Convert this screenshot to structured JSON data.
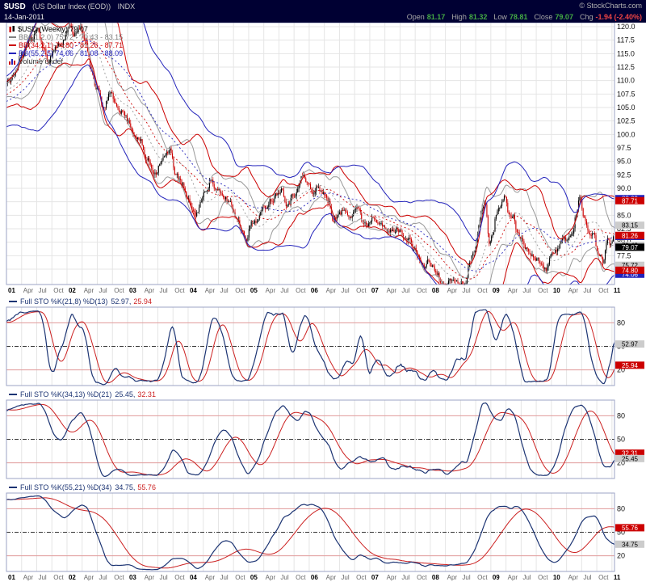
{
  "header": {
    "symbol": "$USD",
    "name": "(US Dollar Index (EOD))",
    "exchange": "INDX",
    "copyright": "© StockCharts.com",
    "date": "14-Jan-2011",
    "quote": {
      "open_label": "Open",
      "open": "81.17",
      "high_label": "High",
      "high": "81.32",
      "low_label": "Low",
      "low": "78.81",
      "close_label": "Close",
      "close": "79.07",
      "chg_label": "Chg",
      "chg": "-1.94 (-2.40%)"
    }
  },
  "main_legend": {
    "title": "$USD (Weekly) 79.07",
    "bb21": "BB(21,2.0) 75.72 - 79.43 - 83.15",
    "bb34": "BB(34,2.1) 74.80 - 81.26 - 87.71",
    "bb55": "BB(55,2.5) 74.06 - 81.08 - 88.09",
    "volume": "Volume undef"
  },
  "chart_data": {
    "type": "candlestick+indicators",
    "title": "$USD (US Dollar Index (EOD)) INDX Weekly",
    "colors": {
      "grid": "#e5e5e5",
      "border": "#9ba3c5",
      "candle_up": "#000000",
      "candle_down": "#cc0000",
      "k_line": "#1c3473",
      "d_line": "#cc2020",
      "k_box": "#cccccc",
      "d_box": "#cc0000",
      "ob_os": "#e09a9a"
    },
    "x_axis": {
      "tick_labels": [
        "01",
        "Apr",
        "Jul",
        "Oct",
        "02",
        "Apr",
        "Jul",
        "Oct",
        "03",
        "Apr",
        "Jul",
        "Oct",
        "04",
        "Apr",
        "Jul",
        "Oct",
        "05",
        "Apr",
        "Jul",
        "Oct",
        "06",
        "Apr",
        "Jul",
        "Oct",
        "07",
        "Apr",
        "Jul",
        "Oct",
        "08",
        "Apr",
        "Jul",
        "Oct",
        "09",
        "Apr",
        "Jul",
        "Oct",
        "10",
        "Apr",
        "Jul",
        "Oct",
        "11"
      ]
    },
    "y_axis": {
      "min": 72.15,
      "max": 120.75,
      "ticks": [
        120,
        117.5,
        115,
        112.5,
        110,
        107.5,
        105,
        102.5,
        100,
        97.5,
        95,
        92.5,
        90,
        87.5,
        85,
        82.5,
        80,
        77.5,
        75
      ],
      "tick_labels": [
        "120.0",
        "117.5",
        "115.0",
        "112.5",
        "110.0",
        "107.5",
        "105.0",
        "102.5",
        "100.0",
        "97.5",
        "95.0",
        "92.5",
        "90.0",
        "87.5",
        "85.0",
        "82.5",
        "80.0",
        "77.5",
        "75.0"
      ]
    },
    "price_keypoints": {
      "week": [
        -130,
        -100,
        -70,
        -40,
        -10,
        0,
        6,
        13,
        20,
        27,
        32,
        36,
        42,
        48,
        54,
        58,
        63,
        68,
        73,
        78,
        84,
        89,
        94,
        100,
        106,
        110,
        115,
        121,
        128,
        134,
        141,
        146,
        151,
        157,
        163,
        168,
        172,
        176,
        181,
        187,
        192,
        198,
        203,
        207,
        211,
        216,
        222,
        228,
        237,
        242,
        248,
        252,
        255,
        260,
        264,
        268,
        273,
        278,
        281,
        286,
        291,
        297,
        302,
        307,
        311,
        316,
        321,
        328,
        333,
        337,
        342,
        347,
        351,
        355,
        359,
        363,
        367,
        371,
        377,
        381,
        385,
        389,
        395,
        399,
        403,
        407,
        410,
        413,
        416,
        419,
        422,
        426,
        429,
        433,
        437,
        440,
        444,
        448,
        452,
        457,
        461,
        465,
        469,
        472,
        475,
        479,
        483,
        488,
        491,
        494,
        498,
        502,
        506,
        509,
        512,
        514,
        518,
        520,
        523,
        524
      ],
      "close": [
        96.0,
        98.0,
        100.5,
        104.5,
        108.0,
        109.3,
        110.8,
        114.8,
        117.0,
        119.8,
        116.2,
        113.3,
        116.2,
        117.3,
        119.9,
        118.7,
        120.2,
        117.0,
        112.5,
        108.2,
        104.8,
        107.5,
        105.8,
        104.2,
        102.2,
        100.2,
        98.8,
        95.3,
        93.0,
        95.5,
        96.8,
        92.8,
        90.8,
        87.4,
        85.2,
        87.5,
        90.0,
        91.7,
        89.5,
        88.3,
        87.6,
        84.8,
        82.3,
        81.0,
        83.4,
        84.2,
        86.3,
        88.0,
        89.9,
        87.3,
        88.8,
        91.0,
        92.2,
        90.8,
        88.9,
        90.2,
        89.3,
        87.2,
        84.4,
        84.9,
        85.9,
        85.3,
        86.6,
        83.9,
        83.4,
        84.9,
        84.2,
        81.8,
        82.0,
        82.5,
        81.3,
        80.6,
        78.4,
        77.4,
        75.2,
        76.4,
        75.7,
        73.8,
        71.9,
        72.7,
        73.1,
        72.7,
        72.2,
        76.0,
        78.8,
        83.0,
        86.0,
        87.0,
        80.3,
        81.8,
        85.0,
        86.8,
        88.9,
        85.0,
        84.6,
        82.3,
        80.2,
        79.0,
        78.2,
        76.6,
        76.2,
        75.0,
        77.6,
        77.9,
        78.6,
        80.4,
        80.8,
        81.5,
        85.0,
        88.2,
        84.8,
        82.0,
        81.5,
        78.8,
        77.3,
        76.3,
        81.0,
        79.3,
        81.1,
        79.07
      ]
    },
    "overlays": [
      {
        "name": "BB(21,2.0)",
        "type": "bollinger",
        "period": 21,
        "stdev": 2.0,
        "color": "#999999",
        "last_lower": 75.72,
        "last_mid": 79.43,
        "last_upper": 83.15
      },
      {
        "name": "BB(34,2.1)",
        "type": "bollinger",
        "period": 34,
        "stdev": 2.1,
        "color": "#cc0000",
        "last_lower": 74.8,
        "last_mid": 81.26,
        "last_upper": 87.71
      },
      {
        "name": "BB(55,2.5)",
        "type": "bollinger",
        "period": 55,
        "stdev": 2.5,
        "color": "#2323bb",
        "last_lower": 74.06,
        "last_mid": 81.08,
        "last_upper": 88.09
      }
    ],
    "price_labels": [
      {
        "label": "83.15",
        "value": 83.15,
        "bg": "#cccccc",
        "fg": "#000000"
      },
      {
        "label": "79.43",
        "value": 79.43,
        "bg": "#cccccc",
        "fg": "#000000"
      },
      {
        "label": "75.72",
        "value": 75.72,
        "bg": "#cccccc",
        "fg": "#000000"
      },
      {
        "label": "88.09",
        "value": 88.09,
        "bg": "#2323bb",
        "fg": "#ffffff"
      },
      {
        "label": "81.08",
        "value": 81.08,
        "bg": "#2323bb",
        "fg": "#ffffff"
      },
      {
        "label": "74.06",
        "value": 74.06,
        "bg": "#2323bb",
        "fg": "#ffffff"
      },
      {
        "label": "87.71",
        "value": 87.71,
        "bg": "#cc0000",
        "fg": "#ffffff"
      },
      {
        "label": "81.26",
        "value": 81.26,
        "bg": "#cc0000",
        "fg": "#ffffff"
      },
      {
        "label": "74.80",
        "value": 74.8,
        "bg": "#cc0000",
        "fg": "#ffffff"
      },
      {
        "label": "79.07",
        "value": 79.07,
        "bg": "#000000",
        "fg": "#ffffff"
      }
    ],
    "panels": [
      {
        "legend": "Full STO %K(21,8) %D(13)",
        "k_value": "52.97",
        "d_value": "25.94",
        "params": {
          "n": 21,
          "k": 8,
          "d": 13
        },
        "levels": [
          80,
          50,
          20
        ]
      },
      {
        "legend": "Full STO %K(34,13) %D(21)",
        "k_value": "25.45",
        "d_value": "32.31",
        "params": {
          "n": 34,
          "k": 13,
          "d": 21
        },
        "levels": [
          80,
          50,
          20
        ]
      },
      {
        "legend": "Full STO %K(55,21) %D(34)",
        "k_value": "34.75",
        "d_value": "55.76",
        "params": {
          "n": 55,
          "k": 21,
          "d": 34
        },
        "levels": [
          80,
          50,
          20
        ]
      }
    ]
  }
}
